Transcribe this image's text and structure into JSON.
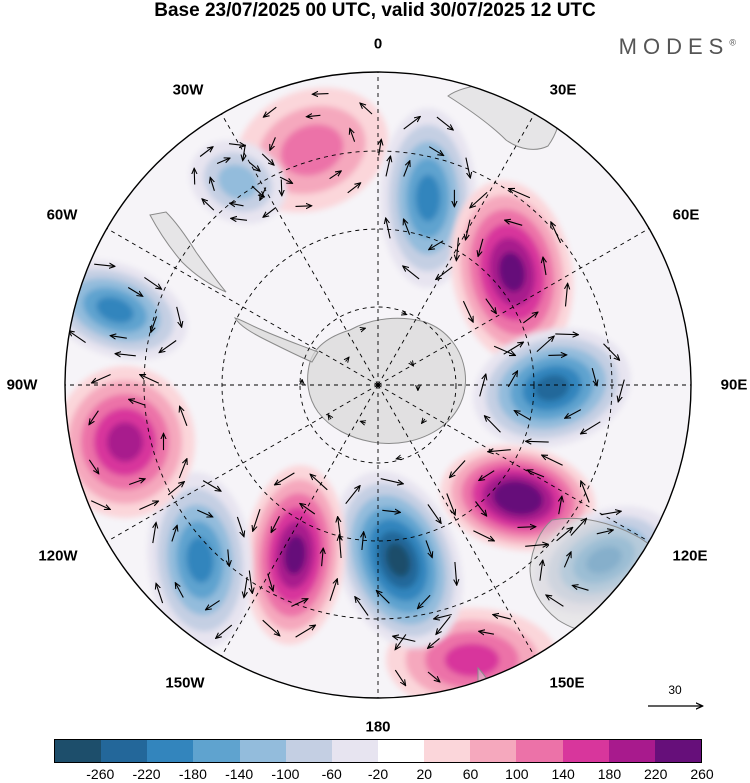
{
  "title": "Base 23/07/2025 00 UTC, valid 30/07/2025 12 UTC",
  "brand": "MODES",
  "brand_mark": "®",
  "longitude_labels": [
    {
      "id": "lon-0",
      "text": "0"
    },
    {
      "id": "lon-30e",
      "text": "30E"
    },
    {
      "id": "lon-60e",
      "text": "60E"
    },
    {
      "id": "lon-90e",
      "text": "90E"
    },
    {
      "id": "lon-120e",
      "text": "120E"
    },
    {
      "id": "lon-150e",
      "text": "150E"
    },
    {
      "id": "lon-180",
      "text": "180"
    },
    {
      "id": "lon-150w",
      "text": "150W"
    },
    {
      "id": "lon-120w",
      "text": "120W"
    },
    {
      "id": "lon-90w",
      "text": "90W"
    },
    {
      "id": "lon-60w",
      "text": "60W"
    },
    {
      "id": "lon-30w",
      "text": "30W"
    }
  ],
  "reference_vector": {
    "value": "30"
  },
  "colorbar": {
    "colors": [
      "#1d4e6b",
      "#23679a",
      "#3385bd",
      "#5fa3cf",
      "#93bcdc",
      "#c4cfe3",
      "#e7e4f0",
      "#ffffff",
      "#fbd6da",
      "#f5a8bd",
      "#ec72a8",
      "#d8369c",
      "#a81a8d",
      "#660f7a"
    ],
    "ticks": [
      "-260",
      "-220",
      "-180",
      "-140",
      "-100",
      "-60",
      "-20",
      "20",
      "60",
      "100",
      "140",
      "180",
      "220",
      "260"
    ]
  },
  "anomaly_centers": [
    {
      "name": "center-30w-pos",
      "sign": "pos",
      "value": 100
    },
    {
      "name": "center-60w-neg",
      "sign": "neg",
      "value": -100
    },
    {
      "name": "center-0-neg",
      "sign": "neg",
      "value": -180
    },
    {
      "name": "center-45e-pos",
      "sign": "pos",
      "value": 220
    },
    {
      "name": "center-90e-neg",
      "sign": "neg",
      "value": -220
    },
    {
      "name": "center-110e-pos",
      "sign": "pos",
      "value": 260
    },
    {
      "name": "center-135e-neg",
      "sign": "neg",
      "value": -180
    },
    {
      "name": "center-160e-pos",
      "sign": "pos",
      "value": 140
    },
    {
      "name": "center-180-neg",
      "sign": "neg",
      "value": -260
    },
    {
      "name": "center-160w-pos",
      "sign": "pos",
      "value": 220
    },
    {
      "name": "center-130w-neg",
      "sign": "neg",
      "value": -180
    },
    {
      "name": "center-95w-pos",
      "sign": "pos",
      "value": 180
    },
    {
      "name": "center-75w-neg",
      "sign": "neg",
      "value": -180
    }
  ]
}
